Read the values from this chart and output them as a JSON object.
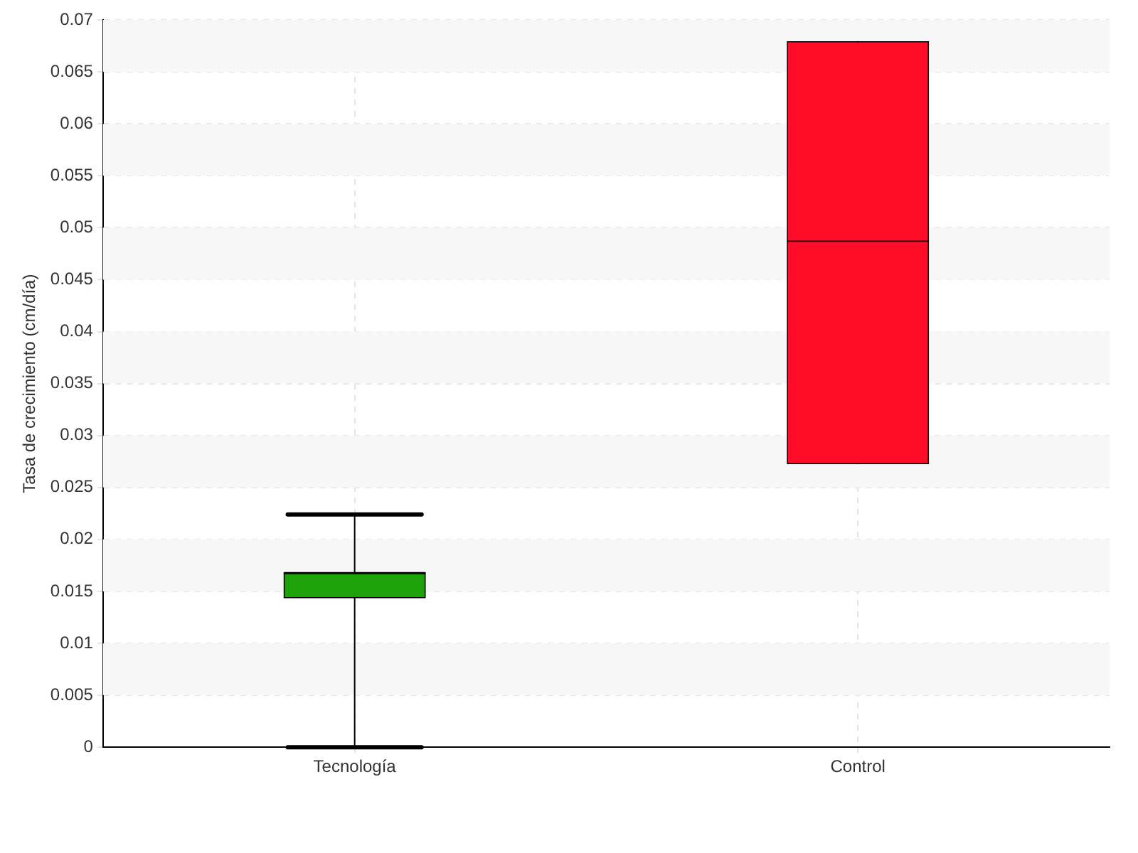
{
  "chart_data": {
    "type": "box",
    "ylabel": "Tasa de crecimiento (cm/día)",
    "categories": [
      "Tecnología",
      "Control"
    ],
    "colors": [
      "#1fa10b",
      "#ff0d28"
    ],
    "boxes": [
      {
        "low": 0,
        "q1": 0.0144,
        "median": 0.0167,
        "q3": 0.0168,
        "high": 0.0224
      },
      {
        "low": 0.0273,
        "q1": 0.0273,
        "median": 0.0487,
        "q3": 0.0679,
        "high": 0.0679
      }
    ],
    "ylim": [
      0,
      0.07
    ],
    "yticks": [
      0,
      0.005,
      0.01,
      0.015,
      0.02,
      0.025,
      0.03,
      0.035,
      0.04,
      0.045,
      0.05,
      0.055,
      0.06,
      0.065,
      0.07
    ],
    "grid": true,
    "legend": false
  }
}
